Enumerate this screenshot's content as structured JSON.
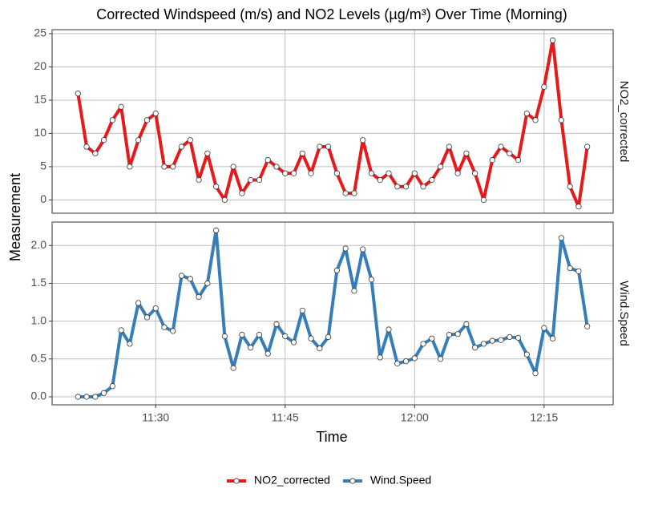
{
  "chart_data": {
    "type": "line",
    "title": "Corrected Windspeed (m/s) and NO2 Levels (µg/m³) Over Time (Morning)",
    "x_label": "Time",
    "y_label": "Measurement",
    "grid": true,
    "legend_position": "bottom",
    "x": [
      "11:21",
      "11:22",
      "11:23",
      "11:24",
      "11:25",
      "11:26",
      "11:27",
      "11:28",
      "11:29",
      "11:30",
      "11:31",
      "11:32",
      "11:33",
      "11:34",
      "11:35",
      "11:36",
      "11:37",
      "11:38",
      "11:39",
      "11:40",
      "11:41",
      "11:42",
      "11:43",
      "11:44",
      "11:45",
      "11:46",
      "11:47",
      "11:48",
      "11:49",
      "11:50",
      "11:51",
      "11:52",
      "11:53",
      "11:54",
      "11:55",
      "11:56",
      "11:57",
      "11:58",
      "11:59",
      "12:00",
      "12:01",
      "12:02",
      "12:03",
      "12:04",
      "12:05",
      "12:06",
      "12:07",
      "12:08",
      "12:09",
      "12:10",
      "12:11",
      "12:12",
      "12:13",
      "12:14",
      "12:15",
      "12:16",
      "12:17",
      "12:18",
      "12:19",
      "12:20"
    ],
    "xlim": [
      "11:18",
      "12:23"
    ],
    "xticks": [
      "11:30",
      "11:45",
      "12:00",
      "12:15"
    ],
    "series": [
      {
        "name": "NO2_corrected",
        "color": "#e41a1c",
        "ylim": [
          -2,
          25.6
        ],
        "yticks": [
          0,
          5,
          10,
          15,
          20,
          25
        ],
        "values": [
          16,
          8,
          7,
          9,
          12,
          14,
          5,
          9,
          12,
          13,
          5,
          5,
          8,
          9,
          3,
          7,
          2,
          0,
          5,
          1,
          3,
          3,
          6,
          5,
          4,
          4,
          7,
          4,
          8,
          8,
          4,
          1,
          1,
          9,
          4,
          3,
          4,
          2,
          2,
          4,
          2,
          3,
          5,
          8,
          4,
          7,
          4,
          0,
          6,
          8,
          7,
          6,
          13,
          12,
          17,
          24,
          12,
          2,
          -1,
          8
        ]
      },
      {
        "name": "Wind.Speed",
        "color": "#377eb8",
        "ylim": [
          -0.106,
          2.31
        ],
        "yticks": [
          {
            "value": 0,
            "label": "0.0"
          },
          {
            "value": 0.5,
            "label": "0.5"
          },
          {
            "value": 1,
            "label": "1.0"
          },
          {
            "value": 1.5,
            "label": "1.5"
          },
          {
            "value": 2,
            "label": "2.0"
          }
        ],
        "values": [
          0,
          0,
          0,
          0.05,
          0.14,
          0.88,
          0.7,
          1.24,
          1.05,
          1.17,
          0.92,
          0.87,
          1.6,
          1.56,
          1.32,
          1.5,
          2.2,
          0.8,
          0.38,
          0.82,
          0.65,
          0.82,
          0.57,
          0.96,
          0.8,
          0.72,
          1.14,
          0.77,
          0.64,
          0.79,
          1.67,
          1.96,
          1.4,
          1.95,
          1.55,
          0.52,
          0.89,
          0.44,
          0.47,
          0.51,
          0.7,
          0.77,
          0.5,
          0.82,
          0.83,
          0.96,
          0.65,
          0.7,
          0.74,
          0.75,
          0.79,
          0.78,
          0.56,
          0.31,
          0.91,
          0.77,
          2.1,
          1.7,
          1.66,
          0.93
        ]
      }
    ]
  }
}
